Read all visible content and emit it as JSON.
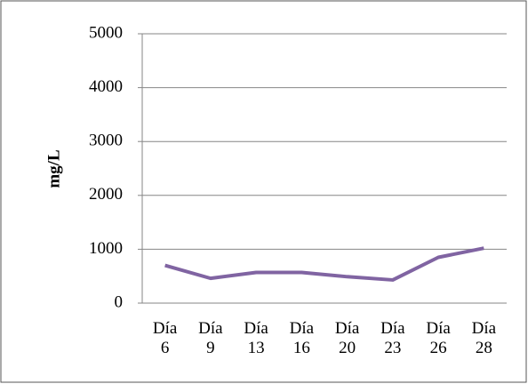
{
  "chart_data": {
    "type": "line",
    "y_label": "mg/L",
    "categories": [
      "Día 6",
      "Día 9",
      "Día 13",
      "Día 16",
      "Día 20",
      "Día 23",
      "Día 26",
      "Día 28"
    ],
    "values": [
      700,
      460,
      570,
      570,
      490,
      430,
      850,
      1020
    ],
    "color": "#8064a2",
    "ylim": [
      0,
      5000
    ],
    "yticks": [
      0,
      1000,
      2000,
      3000,
      4000,
      5000
    ],
    "grid": true
  }
}
